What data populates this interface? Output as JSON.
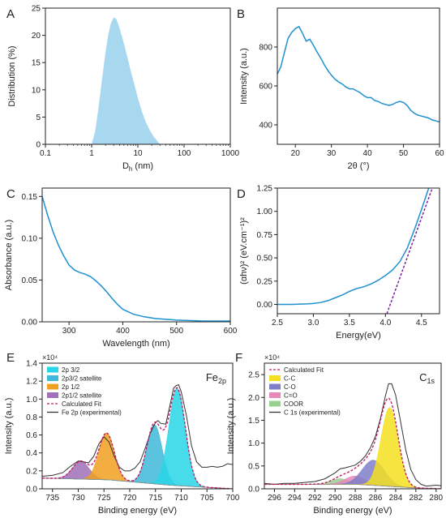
{
  "chart_data": [
    {
      "panel": "A",
      "type": "area",
      "xscale": "log",
      "xlabel": "D",
      "xlabel_sub": "h",
      "xlabel_suffix": " (nm)",
      "ylabel": "Distribution (%)",
      "xlim": [
        0.1,
        1000
      ],
      "ylim": [
        0,
        25
      ],
      "xticks": [
        0.1,
        1,
        10,
        100,
        1000
      ],
      "xtick_labels": [
        "0.1",
        "1",
        "10",
        "100",
        "1000"
      ],
      "yticks": [
        0,
        5,
        10,
        15,
        20,
        25
      ],
      "color": "#a8d8f0",
      "series": [
        {
          "x": [
            1.0,
            1.2,
            1.4,
            1.6,
            1.8,
            2.0,
            2.3,
            2.6,
            3.0,
            3.4,
            3.8,
            4.3,
            5.0,
            6.0,
            7.0,
            8.5,
            10,
            12,
            15,
            18,
            22,
            27,
            30
          ],
          "y": [
            0,
            2.5,
            6.5,
            10.5,
            14.0,
            17.0,
            20.2,
            22.2,
            23.3,
            23.0,
            22.0,
            20.5,
            18.5,
            15.8,
            13.5,
            10.8,
            8.5,
            6.2,
            4.0,
            2.6,
            1.4,
            0.5,
            0
          ]
        }
      ]
    },
    {
      "panel": "B",
      "type": "line",
      "xlabel": "2θ (°)",
      "ylabel": "Intensity (a.u.)",
      "xlim": [
        15,
        60
      ],
      "ylim": [
        300,
        1000
      ],
      "xticks": [
        20,
        30,
        40,
        50,
        60
      ],
      "yticks": [
        400,
        600,
        800
      ],
      "color": "#1e90d0",
      "series": [
        {
          "x": [
            15,
            16,
            17,
            18,
            19,
            20,
            21,
            22,
            23,
            24,
            25,
            26,
            27,
            28,
            29,
            30,
            31,
            32,
            33,
            34,
            35,
            36,
            37,
            38,
            39,
            40,
            41,
            42,
            43,
            44,
            45,
            46,
            47,
            48,
            49,
            50,
            51,
            52,
            53,
            54,
            55,
            56,
            57,
            58,
            59,
            60
          ],
          "y": [
            660,
            700,
            775,
            845,
            875,
            895,
            905,
            870,
            830,
            840,
            810,
            775,
            745,
            710,
            680,
            655,
            635,
            620,
            610,
            595,
            585,
            585,
            575,
            565,
            550,
            540,
            540,
            525,
            520,
            510,
            505,
            500,
            505,
            515,
            520,
            515,
            500,
            475,
            460,
            450,
            445,
            440,
            435,
            425,
            420,
            415
          ]
        }
      ]
    },
    {
      "panel": "C",
      "type": "line",
      "xlabel": "Wavelength (nm)",
      "ylabel": "Absorbance (a.u.)",
      "xlim": [
        250,
        600
      ],
      "ylim": [
        0,
        0.16
      ],
      "xticks": [
        300,
        400,
        500,
        600
      ],
      "yticks": [
        0.0,
        0.05,
        0.1,
        0.15
      ],
      "ytick_labels": [
        "0.00",
        "0.05",
        "0.10",
        "0.15"
      ],
      "color": "#1e90d0",
      "series": [
        {
          "x": [
            250,
            260,
            270,
            280,
            290,
            300,
            310,
            320,
            330,
            340,
            350,
            360,
            370,
            380,
            390,
            400,
            420,
            440,
            460,
            480,
            500,
            550,
            600
          ],
          "y": [
            0.15,
            0.128,
            0.108,
            0.092,
            0.079,
            0.068,
            0.062,
            0.059,
            0.057,
            0.054,
            0.049,
            0.043,
            0.036,
            0.028,
            0.021,
            0.015,
            0.009,
            0.006,
            0.004,
            0.003,
            0.002,
            0.001,
            0.001
          ]
        }
      ]
    },
    {
      "panel": "D",
      "type": "line",
      "xlabel": "Energy(eV)",
      "ylabel": "(αhν)² (eV.cm⁻¹)²",
      "xlim": [
        2.5,
        4.75
      ],
      "ylim": [
        -0.1,
        1.25
      ],
      "xticks": [
        2.5,
        3.0,
        3.5,
        4.0,
        4.5
      ],
      "xtick_labels": [
        "2.5",
        "3.0",
        "3.5",
        "4.0",
        "4.5"
      ],
      "yticks": [
        0.0,
        0.25,
        0.5,
        0.75,
        1.0,
        1.25
      ],
      "ytick_labels": [
        "0.00",
        "0.25",
        "0.50",
        "0.75",
        "1.00",
        "1.25"
      ],
      "series": [
        {
          "style": "solid",
          "color": "#1e90d0",
          "x": [
            2.5,
            2.7,
            2.9,
            3.0,
            3.1,
            3.2,
            3.3,
            3.4,
            3.5,
            3.6,
            3.7,
            3.8,
            3.9,
            4.0,
            4.1,
            4.2,
            4.3,
            4.4,
            4.5,
            4.6
          ],
          "y": [
            0.0,
            0.0,
            0.005,
            0.01,
            0.02,
            0.04,
            0.07,
            0.1,
            0.14,
            0.17,
            0.19,
            0.22,
            0.26,
            0.31,
            0.37,
            0.46,
            0.6,
            0.8,
            1.02,
            1.25
          ]
        },
        {
          "style": "dashed",
          "color": "#7a1fa2",
          "x": [
            4.02,
            4.65
          ],
          "y": [
            -0.1,
            1.25
          ]
        }
      ]
    },
    {
      "panel": "E",
      "type": "area",
      "title": "Fe",
      "title_sub": "2p",
      "xlabel": "Binding energy (eV)",
      "ylabel": "Intensity (a.u.)",
      "multiplier": "×10⁴",
      "xlim": [
        737,
        700
      ],
      "ylim": [
        0,
        1.4
      ],
      "xticks": [
        735,
        730,
        725,
        720,
        715,
        710,
        705,
        700
      ],
      "yticks": [
        0.0,
        0.2,
        0.4,
        0.6,
        0.8,
        1.0,
        1.2,
        1.4
      ],
      "ytick_labels": [
        "0.0",
        "0.2",
        "0.4",
        "0.6",
        "0.8",
        "1.0",
        "1.2",
        "1.4"
      ],
      "baseline": [
        [
          737,
          0.12
        ],
        [
          724,
          0.1
        ],
        [
          712,
          0.04
        ],
        [
          700,
          0.0
        ]
      ],
      "peaks": [
        {
          "name": "2p 3/2",
          "center": 710.8,
          "height": 1.08,
          "sigma": 1.6,
          "color": "#28d6e8"
        },
        {
          "name": "2p3/2 satellite",
          "center": 715.2,
          "height": 0.66,
          "sigma": 1.5,
          "color": "#40b8d8"
        },
        {
          "name": "2p 1/2",
          "center": 724.5,
          "height": 0.52,
          "sigma": 1.5,
          "color": "#f0a020"
        },
        {
          "name": "2p1/2 satellite",
          "center": 729.5,
          "height": 0.2,
          "sigma": 1.6,
          "color": "#a070b8"
        }
      ],
      "fit": {
        "name": "Calculated Fit",
        "color": "#c0206a"
      },
      "experimental": {
        "name": "Fe 2p (experimental)",
        "color": "#333333",
        "x": [
          737,
          735,
          733,
          731.5,
          730,
          729,
          728,
          727,
          726,
          725,
          724,
          723,
          722,
          721,
          720,
          719,
          718,
          717,
          716,
          715,
          714.5,
          714,
          713,
          712,
          711.5,
          711,
          710.5,
          710,
          709,
          708,
          707,
          706,
          705,
          704,
          703,
          702,
          701,
          700
        ],
        "y": [
          0.14,
          0.15,
          0.18,
          0.25,
          0.31,
          0.3,
          0.29,
          0.36,
          0.5,
          0.58,
          0.52,
          0.36,
          0.24,
          0.2,
          0.2,
          0.23,
          0.3,
          0.45,
          0.62,
          0.74,
          0.76,
          0.73,
          0.72,
          0.98,
          1.12,
          1.15,
          1.16,
          1.08,
          0.82,
          0.48,
          0.3,
          0.24,
          0.24,
          0.25,
          0.24,
          0.25,
          0.28,
          0.27
        ]
      }
    },
    {
      "panel": "F",
      "type": "area",
      "title": "C",
      "title_sub": "1s",
      "xlabel": "Binding energy (eV)",
      "ylabel": "Intensity (a.u.)",
      "multiplier": "×10⁴",
      "xlim": [
        297,
        279.5
      ],
      "ylim": [
        0,
        2.75
      ],
      "xticks": [
        296,
        294,
        292,
        290,
        288,
        286,
        284,
        282,
        280
      ],
      "yticks": [
        0.0,
        0.5,
        1.0,
        1.5,
        2.0,
        2.5
      ],
      "ytick_labels": [
        "0.0",
        "0.5",
        "1.0",
        "1.5",
        "2.0",
        "2.5"
      ],
      "baseline": [
        [
          297,
          0.1
        ],
        [
          288,
          0.1
        ],
        [
          282,
          0.02
        ],
        [
          279.5,
          0.0
        ]
      ],
      "peaks": [
        {
          "name": "C-C",
          "center": 284.6,
          "height": 1.72,
          "sigma": 0.85,
          "color": "#f5e020"
        },
        {
          "name": "C-O",
          "center": 286.2,
          "height": 0.55,
          "sigma": 1.1,
          "color": "#7f7fc8"
        },
        {
          "name": "C=O",
          "center": 288.0,
          "height": 0.18,
          "sigma": 1.0,
          "color": "#e888b8"
        },
        {
          "name": "COOR",
          "center": 289.5,
          "height": 0.12,
          "sigma": 0.9,
          "color": "#98d090"
        }
      ],
      "fit": {
        "name": "Calculated Fit",
        "color": "#c0206a"
      },
      "experimental": {
        "name": "C 1s (experimental)",
        "color": "#333333",
        "x": [
          297,
          296,
          295,
          294,
          293,
          292,
          291,
          290,
          289.5,
          289,
          288,
          287.5,
          287,
          286.5,
          286,
          285.5,
          285,
          284.7,
          284.4,
          284,
          283.5,
          283,
          282.5,
          282,
          281.5,
          281,
          280.5,
          280,
          279.5
        ],
        "y": [
          0.12,
          0.1,
          0.12,
          0.12,
          0.14,
          0.16,
          0.22,
          0.35,
          0.44,
          0.46,
          0.52,
          0.6,
          0.72,
          0.9,
          1.15,
          1.55,
          2.05,
          2.3,
          2.3,
          2.05,
          1.45,
          0.85,
          0.42,
          0.2,
          0.1,
          0.06,
          0.07,
          0.08,
          0.07
        ]
      }
    }
  ]
}
